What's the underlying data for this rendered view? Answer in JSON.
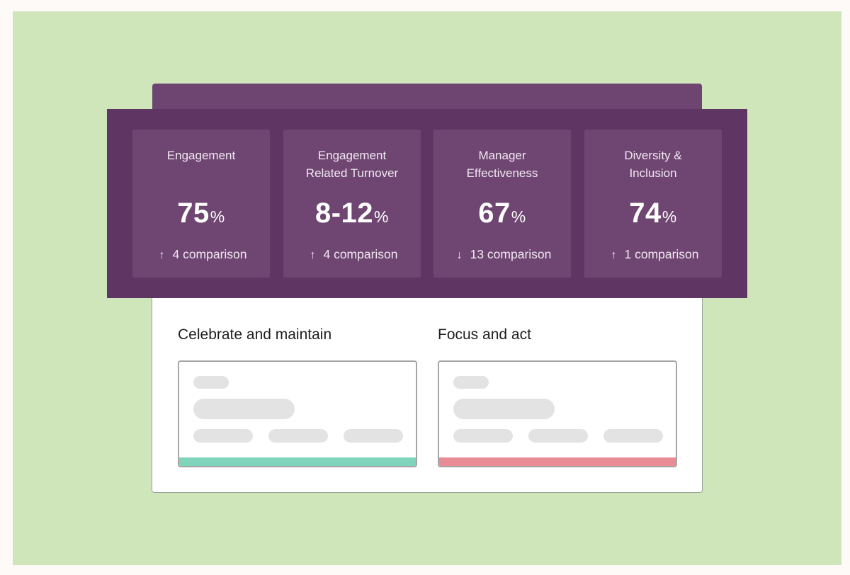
{
  "metrics": [
    {
      "title": "Engagement",
      "value": "75",
      "unit": "%",
      "direction": "up",
      "arrow": "↑",
      "comparison": "4 comparison"
    },
    {
      "title": "Engagement\nRelated Turnover",
      "value": "8-12",
      "unit": "%",
      "direction": "up",
      "arrow": "↑",
      "comparison": "4 comparison"
    },
    {
      "title": "Manager\nEffectiveness",
      "value": "67",
      "unit": "%",
      "direction": "down",
      "arrow": "↓",
      "comparison": "13 comparison"
    },
    {
      "title": "Diversity &\nInclusion",
      "value": "74",
      "unit": "%",
      "direction": "up",
      "arrow": "↑",
      "comparison": "1 comparison"
    }
  ],
  "sections": {
    "celebrate": {
      "title": "Celebrate and maintain",
      "accent": "#7fd4bb"
    },
    "focus": {
      "title": "Focus and act",
      "accent": "#ea8c95"
    }
  },
  "colors": {
    "background": "#cfe6bb",
    "band": "#5e3563",
    "tile": "#6f4672",
    "tab": "#6e4470"
  }
}
